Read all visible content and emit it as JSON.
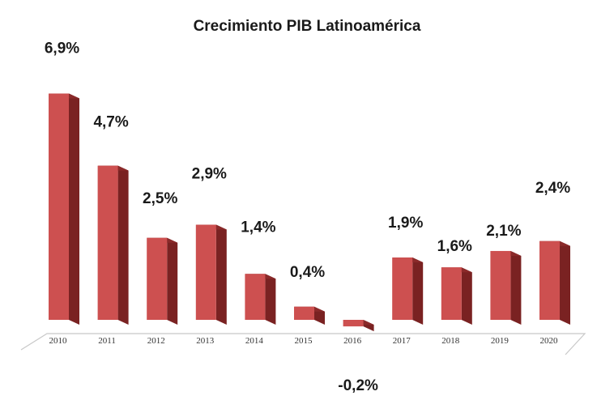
{
  "chart_data": {
    "type": "bar",
    "title": "Crecimiento PIB Latinoamérica",
    "xlabel": "",
    "ylabel": "",
    "categories": [
      "2010",
      "2011",
      "2012",
      "2013",
      "2014",
      "2015",
      "2016",
      "2017",
      "2018",
      "2019",
      "2020"
    ],
    "values": [
      6.9,
      4.7,
      2.5,
      2.9,
      1.4,
      0.4,
      -0.2,
      1.9,
      1.6,
      2.1,
      2.4
    ],
    "data_labels": [
      "6,9%",
      "4,7%",
      "2,5%",
      "2,9%",
      "1,4%",
      "0,4%",
      "-0,2%",
      "1,9%",
      "1,6%",
      "2,1%",
      "2,4%"
    ],
    "grid": false,
    "legend": "none",
    "style": "3d-column"
  },
  "colors": {
    "bar_front": "#cd5050",
    "bar_side": "#7a2222",
    "bar_top": "#8a2a2a",
    "floor_line": "#c8c8c8"
  }
}
